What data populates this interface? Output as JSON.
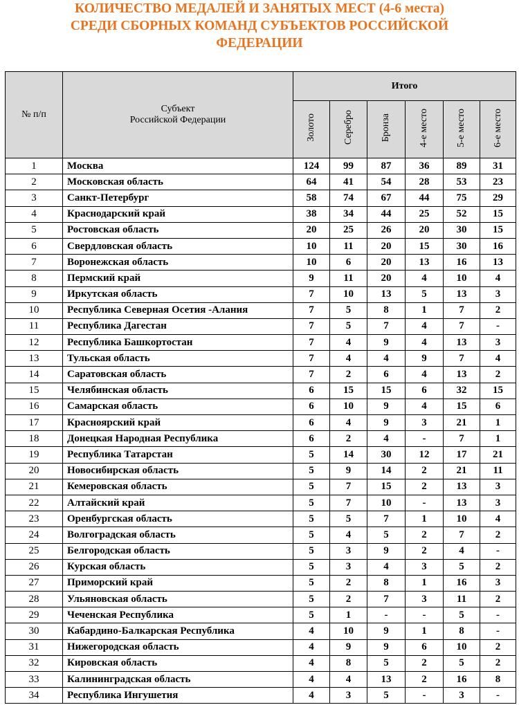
{
  "title": [
    "КОЛИЧЕСТВО МЕДАЛЕЙ И ЗАНЯТЫХ МЕСТ (4-6 места)",
    "СРЕДИ СБОРНЫХ КОМАНД СУБЪЕКТОВ РОССИЙСКОЙ",
    "ФЕДЕРАЦИИ"
  ],
  "table": {
    "header": {
      "number": "№ п/п",
      "subject": [
        "Субъект",
        "Российской Федерации"
      ],
      "group": "Итого",
      "columns": [
        "Золото",
        "Серебро",
        "Бронза",
        "4-е место",
        "5-е место",
        "6-е место"
      ]
    },
    "rows": [
      [
        1,
        "Москва",
        124,
        99,
        87,
        36,
        89,
        31
      ],
      [
        2,
        "Московская область",
        64,
        41,
        54,
        28,
        53,
        23
      ],
      [
        3,
        "Санкт-Петербург",
        58,
        74,
        67,
        44,
        75,
        29
      ],
      [
        4,
        "Краснодарский край",
        38,
        34,
        44,
        25,
        52,
        15
      ],
      [
        5,
        "Ростовская область",
        20,
        25,
        26,
        20,
        30,
        15
      ],
      [
        6,
        "Свердловская область",
        10,
        11,
        20,
        15,
        30,
        16
      ],
      [
        7,
        "Воронежская область",
        10,
        6,
        20,
        13,
        16,
        13
      ],
      [
        8,
        "Пермский край",
        9,
        11,
        20,
        4,
        10,
        4
      ],
      [
        9,
        "Иркутская область",
        7,
        10,
        13,
        5,
        13,
        3
      ],
      [
        10,
        "Республика Северная Осетия -Алания",
        7,
        5,
        8,
        1,
        7,
        2
      ],
      [
        11,
        "Республика Дагестан",
        7,
        5,
        7,
        4,
        7,
        "-"
      ],
      [
        12,
        "Республика Башкортостан",
        7,
        4,
        9,
        4,
        13,
        3
      ],
      [
        13,
        "Тульская область",
        7,
        4,
        4,
        9,
        7,
        4
      ],
      [
        14,
        "Саратовская область",
        7,
        2,
        6,
        4,
        13,
        2
      ],
      [
        15,
        "Челябинская область",
        6,
        15,
        15,
        6,
        32,
        15
      ],
      [
        16,
        "Самарская область",
        6,
        10,
        9,
        4,
        15,
        6
      ],
      [
        17,
        "Красноярский край",
        6,
        4,
        9,
        3,
        21,
        1
      ],
      [
        18,
        "Донецкая Народная Республика",
        6,
        2,
        4,
        "-",
        7,
        1
      ],
      [
        19,
        "Республика Татарстан",
        5,
        14,
        30,
        12,
        17,
        21
      ],
      [
        20,
        "Новосибирская область",
        5,
        9,
        14,
        2,
        21,
        11
      ],
      [
        21,
        "Кемеровская область",
        5,
        7,
        15,
        2,
        13,
        3
      ],
      [
        22,
        "Алтайский край",
        5,
        7,
        10,
        "-",
        13,
        3
      ],
      [
        23,
        "Оренбургская область",
        5,
        5,
        7,
        1,
        10,
        4
      ],
      [
        24,
        "Волгоградская область",
        5,
        4,
        5,
        2,
        7,
        2
      ],
      [
        25,
        "Белгородская область",
        5,
        3,
        9,
        2,
        4,
        "-"
      ],
      [
        26,
        "Курская область",
        5,
        3,
        4,
        3,
        5,
        2
      ],
      [
        27,
        "Приморский край",
        5,
        2,
        8,
        1,
        16,
        3
      ],
      [
        28,
        "Ульяновская область",
        5,
        2,
        7,
        3,
        11,
        2
      ],
      [
        29,
        "Чеченская Республика",
        5,
        1,
        "-",
        "-",
        5,
        "-"
      ],
      [
        30,
        "Кабардино-Балкарская Республика",
        4,
        10,
        9,
        1,
        8,
        "-"
      ],
      [
        31,
        "Нижегородская область",
        4,
        9,
        9,
        6,
        10,
        2
      ],
      [
        32,
        "Кировская область",
        4,
        8,
        5,
        2,
        5,
        2
      ],
      [
        33,
        "Калининградская область",
        4,
        4,
        13,
        2,
        16,
        8
      ],
      [
        34,
        "Республика Ингушетия",
        4,
        3,
        5,
        "-",
        3,
        "-"
      ]
    ]
  }
}
